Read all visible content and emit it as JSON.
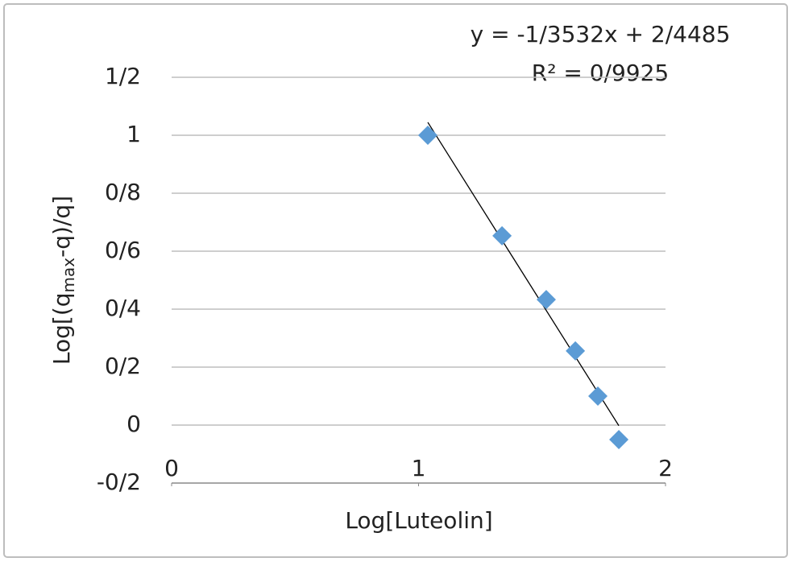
{
  "chart_data": {
    "type": "scatter",
    "xlabel": "Log[Luteolin]",
    "ylabel_parts": [
      "Log[(q",
      "max",
      "-q)/q]"
    ],
    "x": [
      1.0375,
      1.338,
      1.517,
      1.635,
      1.726,
      1.811
    ],
    "series": [
      {
        "color": "#5b9bd5",
        "values": [
          1.0,
          0.653,
          0.433,
          0.256,
          0.1,
          -0.05
        ]
      }
    ],
    "xlim": [
      0,
      2
    ],
    "xticks": [
      0,
      1,
      2
    ],
    "ylim": [
      -0.2,
      1.2
    ],
    "yticks": [
      {
        "value": -0.2,
        "label": "-0/2"
      },
      {
        "value": 0,
        "label": "0"
      },
      {
        "value": 0.2,
        "label": "0/2"
      },
      {
        "value": 0.4,
        "label": "0/4"
      },
      {
        "value": 0.6,
        "label": "0/6"
      },
      {
        "value": 0.8,
        "label": "0/8"
      },
      {
        "value": 1,
        "label": "1"
      },
      {
        "value": 1.2,
        "label": "1/2"
      }
    ],
    "grid": true,
    "trendline": {
      "equation": "y = -1/3532x + 2/4485",
      "r_squared": "R² = 0/9925",
      "slope": -1.3532,
      "intercept": 2.4485,
      "color": "#000000"
    }
  }
}
